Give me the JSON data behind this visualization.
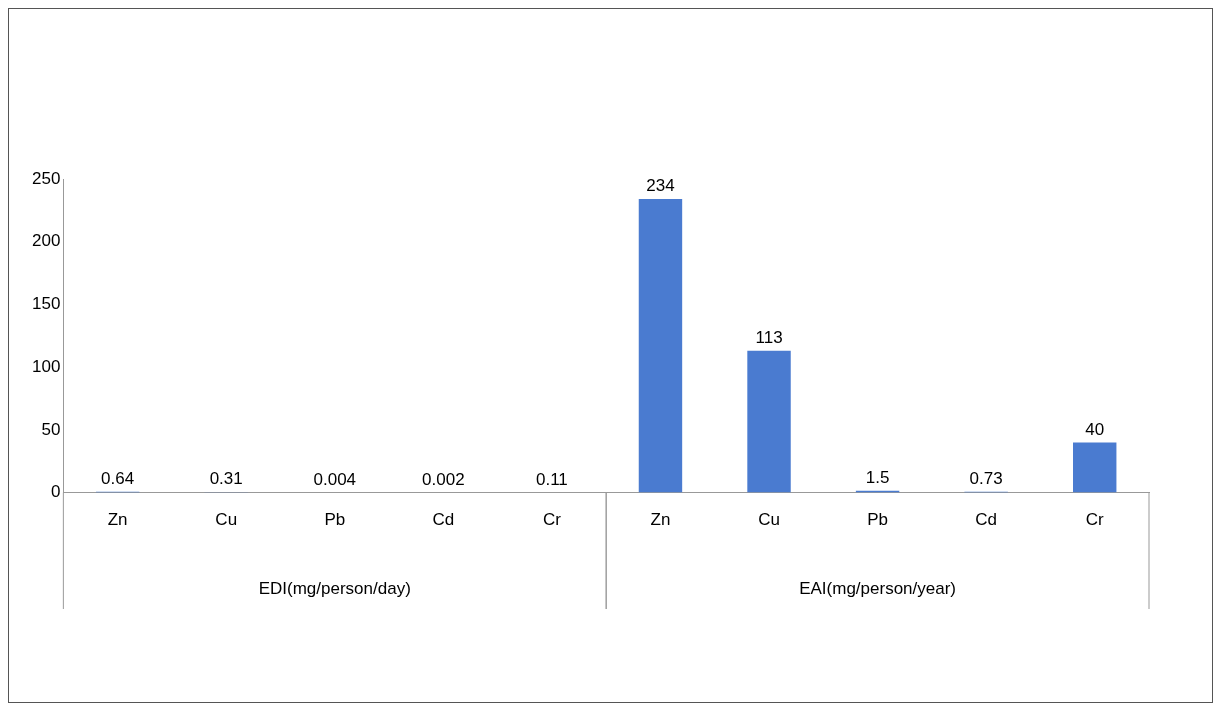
{
  "chart_data": {
    "type": "bar",
    "categories": [
      "Zn",
      "Cu",
      "Pb",
      "Cd",
      "Cr",
      "Zn",
      "Cu",
      "Pb",
      "Cd",
      "Cr"
    ],
    "values": [
      0.64,
      0.31,
      0.004,
      0.002,
      0.11,
      234,
      113,
      1.5,
      0.73,
      40
    ],
    "value_labels": [
      "0.64",
      "0.31",
      "0.004",
      "0.002",
      "0.11",
      "234",
      "113",
      "1.5",
      "0.73",
      "40"
    ],
    "color": "#4a7bd0",
    "ylim": [
      0,
      250
    ],
    "yticks": [
      0,
      50,
      100,
      150,
      200,
      250
    ],
    "annotations": [
      "EDI(mg/person/day)",
      "EAI(mg/person/year)"
    ],
    "legend": false
  }
}
